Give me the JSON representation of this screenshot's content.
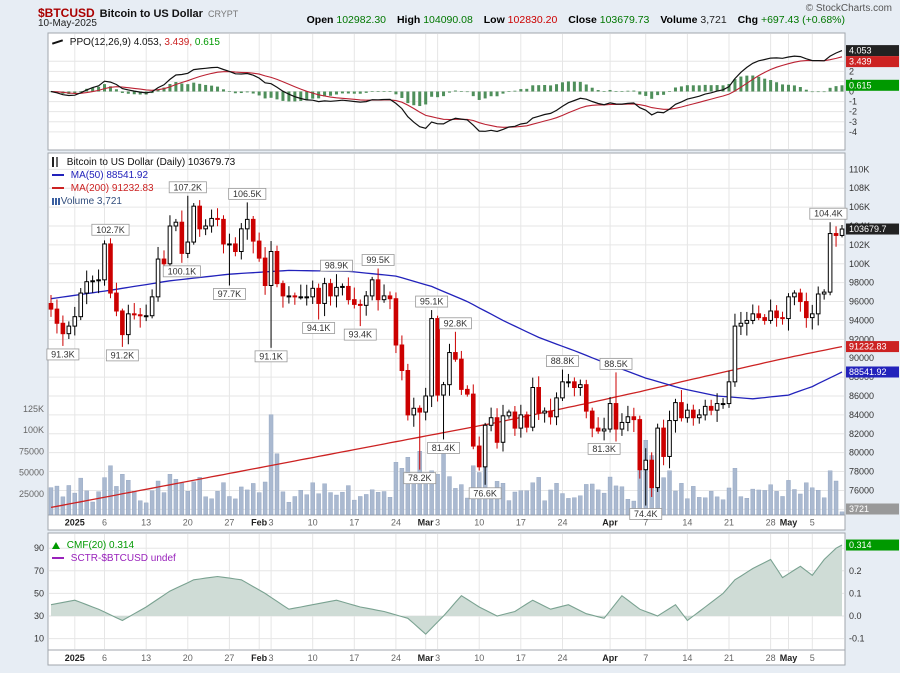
{
  "header": {
    "symbol": "$BTCUSD",
    "name": "Bitcoin to US Dollar",
    "exchange": "CRYPT",
    "date": "10-May-2025",
    "copyright": "© StockCharts.com",
    "quote": {
      "open_label": "Open",
      "open": "102982.30",
      "high_label": "High",
      "high": "104090.08",
      "low_label": "Low",
      "low": "102830.20",
      "close_label": "Close",
      "close": "103679.73",
      "volume_label": "Volume",
      "volume": "3,721",
      "chg_label": "Chg",
      "chg": "+697.43 (+0.68%)"
    }
  },
  "legends": {
    "ppo": {
      "label": "PPO(12,26,9)",
      "main": "4.053,",
      "signal": "3.439,",
      "hist": "0.615"
    },
    "main": {
      "title": "Bitcoin to US Dollar (Daily) 103679.73",
      "ma50": "MA(50) 88541.92",
      "ma200": "MA(200) 91232.83",
      "volume": "Volume 3,721"
    },
    "cmf": {
      "cmf": "CMF(20) 0.314",
      "sctr": "SCTR-$BTCUSD undef"
    }
  },
  "colors": {
    "bg": "#e7edf4",
    "panel_border": "#a0a6ad",
    "grid": "#e6e6e6",
    "up": "#000000",
    "down": "#cc0000",
    "ma50": "#2222bb",
    "ma200": "#cc2222",
    "volume_fill": "#aab9d0",
    "volume_edge": "#8fa2bf",
    "ppo_line": "#111111",
    "ppo_signal": "#bb2233",
    "ppo_hist": "#4f8f5b",
    "cmf_fill": "#cfdcd6",
    "cmf_line": "#7aa291",
    "box_black": "#222222",
    "box_red": "#cc2222",
    "box_blue": "#2222bb",
    "box_green": "#009900",
    "box_gray": "#999999",
    "tick_text": "#333333",
    "tick_text_light": "#666666"
  },
  "chart_data": {
    "type": "candlestick+indicators",
    "title": "$BTCUSD Bitcoin to US Dollar (Daily)",
    "frequency": "daily",
    "start_date": "2024-12-28",
    "unit": "thousand USD",
    "closes_k": [
      95.2,
      93.7,
      92.6,
      93.4,
      94.4,
      96.9,
      98.1,
      98.2,
      98.3,
      102.1,
      96.9,
      95.0,
      92.5,
      94.7,
      94.6,
      94.5,
      94.5,
      96.5,
      100.5,
      100.0,
      104.0,
      104.4,
      101.1,
      102.3,
      106.1,
      103.7,
      104.0,
      104.8,
      104.7,
      102.1,
      102.1,
      101.3,
      103.7,
      104.7,
      102.4,
      100.6,
      97.7,
      101.3,
      97.9,
      96.6,
      96.6,
      96.5,
      96.5,
      96.5,
      97.4,
      95.8,
      97.9,
      96.6,
      97.5,
      97.6,
      96.2,
      95.7,
      95.6,
      96.6,
      98.3,
      96.2,
      96.6,
      96.3,
      91.4,
      88.7,
      84.0,
      84.7,
      84.3,
      86.0,
      94.2,
      86.1,
      87.2,
      90.6,
      89.9,
      86.7,
      86.2,
      80.7,
      78.5,
      82.9,
      83.7,
      81.1,
      83.9,
      84.3,
      82.6,
      84.0,
      82.7,
      86.9,
      84.2,
      84.4,
      83.8,
      85.8,
      87.5,
      87.5,
      86.9,
      87.2,
      84.4,
      82.6,
      82.3,
      82.5,
      85.2,
      82.5,
      83.2,
      83.8,
      83.5,
      78.2,
      79.2,
      76.3,
      82.6,
      79.6,
      83.4,
      85.3,
      83.7,
      84.5,
      83.7,
      84.0,
      84.9,
      84.5,
      85.2,
      85.2,
      87.5,
      93.4,
      93.7,
      94.0,
      94.7,
      94.3,
      94.0,
      95.0,
      94.3,
      94.2,
      96.5,
      96.9,
      96.0,
      94.3,
      94.7,
      96.8,
      97.0,
      103.2,
      103.0,
      103.679
    ],
    "high_overrides_k": {
      "10": 102.7,
      "23": 107.2,
      "33": 106.5,
      "48": 98.9,
      "55": 99.5,
      "64": 95.1,
      "68": 92.8,
      "86": 88.8,
      "95": 88.5,
      "131": 104.4,
      "133": 104.1
    },
    "low_overrides_k": {
      "2": 91.3,
      "12": 91.2,
      "22": 100.1,
      "30": 97.7,
      "37": 91.1,
      "45": 94.1,
      "52": 93.4,
      "62": 78.2,
      "66": 81.4,
      "73": 76.6,
      "93": 81.3,
      "100": 74.4,
      "133": 102.8
    },
    "volume_overrides_k": {
      "9": 44,
      "10": 58,
      "12": 48,
      "18": 40,
      "21": 42,
      "37": 118,
      "38": 72,
      "44": 38,
      "58": 62,
      "59": 55,
      "60": 68,
      "61": 45,
      "62": 75,
      "63": 40,
      "64": 52,
      "65": 48,
      "66": 80,
      "71": 58,
      "72": 50,
      "73": 65,
      "81": 38,
      "90": 36,
      "99": 55,
      "100": 88,
      "101": 70,
      "102": 45,
      "115": 55,
      "125": 30,
      "131": 52,
      "132": 40,
      "133": 3.721
    },
    "last_bar": {
      "open": 102982.3,
      "high": 104090.08,
      "low": 102830.2,
      "close": 103679.73,
      "volume": 3721,
      "change": 697.43,
      "change_pct": 0.68
    },
    "ma50_last": 88541.92,
    "ma200_last": 91232.83,
    "ppo": {
      "params": "12,26,9",
      "main": 4.053,
      "signal": 3.439,
      "hist": 0.615
    },
    "cmf_last": 0.314,
    "sctr": "undef",
    "ma50_anchors": [
      [
        0,
        96.3
      ],
      [
        10,
        97.2
      ],
      [
        20,
        98.2
      ],
      [
        30,
        98.9
      ],
      [
        40,
        99.3
      ],
      [
        50,
        99.2
      ],
      [
        58,
        98.7
      ],
      [
        64,
        97.6
      ],
      [
        70,
        96.0
      ],
      [
        76,
        94.0
      ],
      [
        82,
        92.2
      ],
      [
        88,
        90.8
      ],
      [
        94,
        89.3
      ],
      [
        100,
        87.9
      ],
      [
        106,
        86.8
      ],
      [
        112,
        86.0
      ],
      [
        118,
        85.7
      ],
      [
        124,
        86.1
      ],
      [
        128,
        87.0
      ],
      [
        133,
        88.54
      ]
    ],
    "ma200_anchors": [
      [
        0,
        74.2
      ],
      [
        15,
        76.0
      ],
      [
        30,
        77.8
      ],
      [
        45,
        79.6
      ],
      [
        60,
        81.4
      ],
      [
        75,
        83.2
      ],
      [
        90,
        85.2
      ],
      [
        100,
        86.6
      ],
      [
        108,
        87.8
      ],
      [
        115,
        88.8
      ],
      [
        122,
        89.8
      ],
      [
        128,
        90.6
      ],
      [
        133,
        91.23
      ]
    ],
    "cmf_anchors": [
      [
        0,
        0.05
      ],
      [
        4,
        0.07
      ],
      [
        8,
        0.03
      ],
      [
        12,
        -0.02
      ],
      [
        16,
        0.04
      ],
      [
        20,
        0.11
      ],
      [
        24,
        0.16
      ],
      [
        28,
        0.175
      ],
      [
        32,
        0.16
      ],
      [
        36,
        0.1
      ],
      [
        40,
        0.03
      ],
      [
        44,
        0.05
      ],
      [
        48,
        0.07
      ],
      [
        52,
        0.04
      ],
      [
        56,
        0.02
      ],
      [
        60,
        -0.01
      ],
      [
        63,
        -0.08
      ],
      [
        66,
        0.0
      ],
      [
        69,
        0.09
      ],
      [
        72,
        0.04
      ],
      [
        75,
        0.0
      ],
      [
        78,
        0.02
      ],
      [
        81,
        0.07
      ],
      [
        84,
        0.03
      ],
      [
        87,
        0.05
      ],
      [
        90,
        0.01
      ],
      [
        93,
        -0.01
      ],
      [
        96,
        0.09
      ],
      [
        99,
        0.03
      ],
      [
        102,
        0.0
      ],
      [
        105,
        0.05
      ],
      [
        107,
        -0.02
      ],
      [
        110,
        0.04
      ],
      [
        113,
        0.1
      ],
      [
        115,
        0.16
      ],
      [
        118,
        0.21
      ],
      [
        121,
        0.25
      ],
      [
        123,
        0.17
      ],
      [
        126,
        0.22
      ],
      [
        128,
        0.18
      ],
      [
        130,
        0.25
      ],
      [
        132,
        0.3
      ],
      [
        133,
        0.314
      ]
    ],
    "annotations": [
      {
        "d": 2,
        "v": 91.3,
        "side": "below",
        "t": "91.3K"
      },
      {
        "d": 10,
        "v": 102.7,
        "side": "above",
        "t": "102.7K"
      },
      {
        "d": 12,
        "v": 91.2,
        "side": "below",
        "t": "91.2K"
      },
      {
        "d": 22,
        "v": 100.1,
        "side": "below",
        "t": "100.1K"
      },
      {
        "d": 23,
        "v": 107.2,
        "side": "above",
        "t": "107.2K"
      },
      {
        "d": 30,
        "v": 97.7,
        "side": "below",
        "t": "97.7K"
      },
      {
        "d": 33,
        "v": 106.5,
        "side": "above",
        "t": "106.5K"
      },
      {
        "d": 37,
        "v": 91.1,
        "side": "below",
        "t": "91.1K"
      },
      {
        "d": 45,
        "v": 94.1,
        "side": "below",
        "t": "94.1K"
      },
      {
        "d": 48,
        "v": 98.9,
        "side": "above",
        "t": "98.9K"
      },
      {
        "d": 52,
        "v": 93.4,
        "side": "below",
        "t": "93.4K"
      },
      {
        "d": 55,
        "v": 99.5,
        "side": "above",
        "t": "99.5K"
      },
      {
        "d": 62,
        "v": 78.2,
        "side": "below",
        "t": "78.2K"
      },
      {
        "d": 64,
        "v": 95.1,
        "side": "above",
        "t": "95.1K"
      },
      {
        "d": 66,
        "v": 81.4,
        "side": "below",
        "t": "81.4K"
      },
      {
        "d": 68,
        "v": 92.8,
        "side": "above",
        "t": "92.8K"
      },
      {
        "d": 73,
        "v": 76.6,
        "side": "below",
        "t": "76.6K"
      },
      {
        "d": 86,
        "v": 88.8,
        "side": "above",
        "t": "88.8K"
      },
      {
        "d": 93,
        "v": 81.3,
        "side": "below",
        "t": "81.3K"
      },
      {
        "d": 95,
        "v": 88.5,
        "side": "above",
        "t": "88.5K"
      },
      {
        "d": 100,
        "v": 74.4,
        "side": "below",
        "t": "74.4K"
      },
      {
        "d": 131,
        "v": 104.4,
        "side": "above",
        "t": "104.4K"
      }
    ],
    "x_ticks": [
      {
        "i": 4,
        "t": "2025",
        "b": 1
      },
      {
        "i": 9,
        "t": "6"
      },
      {
        "i": 16,
        "t": "13"
      },
      {
        "i": 23,
        "t": "20"
      },
      {
        "i": 30,
        "t": "27"
      },
      {
        "i": 35,
        "t": "Feb",
        "b": 1
      },
      {
        "i": 37,
        "t": "3"
      },
      {
        "i": 44,
        "t": "10"
      },
      {
        "i": 51,
        "t": "17"
      },
      {
        "i": 58,
        "t": "24"
      },
      {
        "i": 63,
        "t": "Mar",
        "b": 1
      },
      {
        "i": 65,
        "t": "3"
      },
      {
        "i": 72,
        "t": "10"
      },
      {
        "i": 79,
        "t": "17"
      },
      {
        "i": 86,
        "t": "24"
      },
      {
        "i": 94,
        "t": "Apr",
        "b": 1
      },
      {
        "i": 100,
        "t": "7"
      },
      {
        "i": 107,
        "t": "14"
      },
      {
        "i": 114,
        "t": "21"
      },
      {
        "i": 121,
        "t": "28"
      },
      {
        "i": 124,
        "t": "May",
        "b": 1
      },
      {
        "i": 128,
        "t": "5"
      }
    ],
    "price_ticks": [
      {
        "t": "110K",
        "v": 110
      },
      {
        "t": "108K",
        "v": 108
      },
      {
        "t": "106K",
        "v": 106
      },
      {
        "t": "104K",
        "v": 104
      },
      {
        "t": "102K",
        "v": 102
      },
      {
        "t": "100K",
        "v": 100
      },
      {
        "t": "98000",
        "v": 98
      },
      {
        "t": "96000",
        "v": 96
      },
      {
        "t": "94000",
        "v": 94
      },
      {
        "t": "92000",
        "v": 92
      },
      {
        "t": "90000",
        "v": 90
      },
      {
        "t": "88000",
        "v": 88
      },
      {
        "t": "86000",
        "v": 86
      },
      {
        "t": "84000",
        "v": 84
      },
      {
        "t": "82000",
        "v": 82
      },
      {
        "t": "80000",
        "v": 80
      },
      {
        "t": "78000",
        "v": 78
      },
      {
        "t": "76000",
        "v": 76
      },
      {
        "t": "74000",
        "v": 74
      }
    ],
    "volume_ticks": [
      {
        "t": "125K",
        "v": 125
      },
      {
        "t": "100K",
        "v": 100
      },
      {
        "t": "75000",
        "v": 75
      },
      {
        "t": "50000",
        "v": 50
      },
      {
        "t": "25000",
        "v": 25
      }
    ],
    "ppo_ticks": [
      {
        "t": "3",
        "v": 3
      },
      {
        "t": "2",
        "v": 2
      },
      {
        "t": "1",
        "v": 1
      },
      {
        "t": "0",
        "v": 0
      },
      {
        "t": "-1",
        "v": -1
      },
      {
        "t": "-2",
        "v": -2
      },
      {
        "t": "-3",
        "v": -3
      },
      {
        "t": "-4",
        "v": -4
      }
    ],
    "cmf_right_ticks": [
      {
        "t": "0.2",
        "v": 0.2
      },
      {
        "t": "0.1",
        "v": 0.1
      },
      {
        "t": "0.0",
        "v": 0
      },
      {
        "t": "-0.1",
        "v": -0.1
      }
    ],
    "cmf_left_ticks": [
      {
        "t": "90",
        "v": 0.3
      },
      {
        "t": "70",
        "v": 0.2
      },
      {
        "t": "50",
        "v": 0.1
      },
      {
        "t": "30",
        "v": 0
      },
      {
        "t": "10",
        "v": -0.1
      }
    ],
    "axis_value_boxes": [
      {
        "t": "4.053",
        "scale": "ppo",
        "v": 4.053,
        "bg": "black"
      },
      {
        "t": "3.439",
        "scale": "ppo",
        "v": 3.439,
        "bg": "red"
      },
      {
        "t": "0.615",
        "scale": "ppo",
        "v": 0.615,
        "bg": "green"
      },
      {
        "t": "103679.7",
        "scale": "price",
        "v": 103.6797,
        "bg": "black"
      },
      {
        "t": "91232.83",
        "scale": "price",
        "v": 91.23283,
        "bg": "red"
      },
      {
        "t": "88541.92",
        "scale": "price",
        "v": 88.54192,
        "bg": "blue"
      },
      {
        "t": "3721",
        "scale": "vol",
        "v": 3.721,
        "bg": "gray"
      },
      {
        "t": "0.314",
        "scale": "cmf",
        "v": 0.314,
        "bg": "green"
      }
    ]
  }
}
